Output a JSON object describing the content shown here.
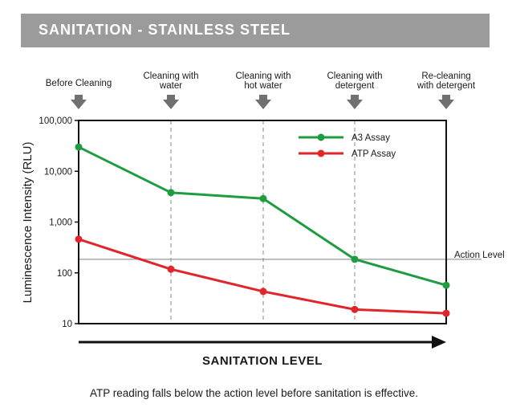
{
  "header": {
    "title": "SANITATION - STAINLESS STEEL"
  },
  "caption": "ATP reading falls below the action level before sanitation is effective.",
  "colors": {
    "header_bg": "#9b9b9b",
    "green": "#1e9c3f",
    "red": "#e0262b",
    "arrow": "#707070",
    "grid": "#888888"
  },
  "chart_data": {
    "type": "line",
    "title": "SANITATION - STAINLESS STEEL",
    "xlabel": "SANITATION LEVEL",
    "ylabel": "Luminescence Intensity (RLU)",
    "yscale": "log",
    "ylim": [
      10,
      100000
    ],
    "yticks": [
      10,
      100,
      1000,
      10000,
      100000
    ],
    "ytick_labels": [
      "10",
      "100",
      "1,000",
      "10,000",
      "100,000"
    ],
    "stages": [
      [
        "Before Cleaning"
      ],
      [
        "Cleaning with",
        "water"
      ],
      [
        "Cleaning with",
        "hot water"
      ],
      [
        "Cleaning with",
        "detergent"
      ],
      [
        "Re-cleaning",
        "with detergent"
      ]
    ],
    "series": [
      {
        "name": "A3 Assay",
        "color": "#1e9c3f",
        "values": [
          30000,
          3800,
          2900,
          185,
          57
        ]
      },
      {
        "name": "ATP Assay",
        "color": "#e0262b",
        "values": [
          460,
          118,
          43,
          19,
          16
        ]
      }
    ],
    "action_level": {
      "label": "Action Level",
      "value": 185
    },
    "legend_position": "top-right"
  }
}
